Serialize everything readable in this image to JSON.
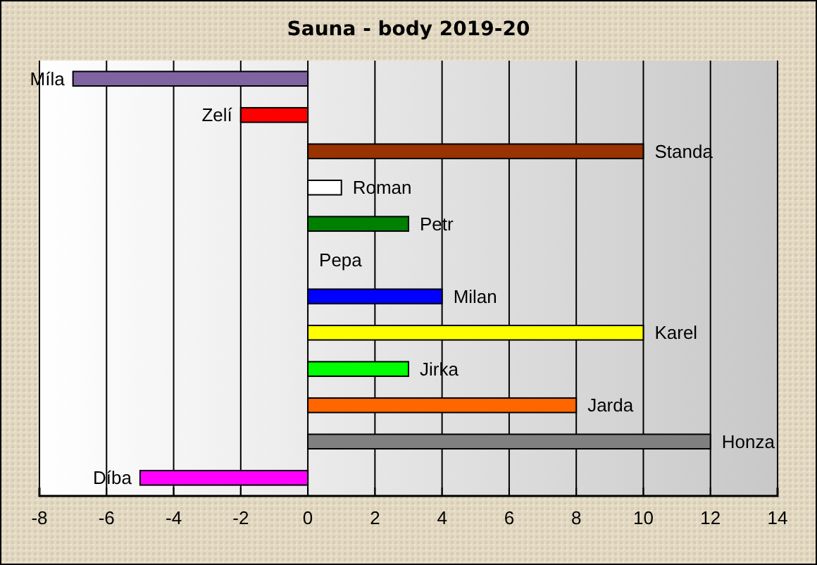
{
  "chart_data": {
    "type": "bar",
    "orientation": "horizontal",
    "title": "Sauna - body 2019-20",
    "categories": [
      "Míla",
      "Zelí",
      "Standa",
      "Roman",
      "Petr",
      "Pepa",
      "Milan",
      "Karel",
      "Jirka",
      "Jarda",
      "Honza",
      "Díba"
    ],
    "values": [
      -7,
      -2,
      10,
      1,
      3,
      0,
      4,
      10,
      3,
      8,
      12,
      -5
    ],
    "colors": [
      "#8064a2",
      "#ff0000",
      "#993300",
      "#ffffff",
      "#008000",
      "#ffff00",
      "#0000ff",
      "#ffff00",
      "#00ff00",
      "#ff6600",
      "#808080",
      "#ff00ff"
    ],
    "xlim": [
      -8,
      14
    ],
    "xticks": [
      -8,
      -6,
      -4,
      -2,
      0,
      2,
      4,
      6,
      8,
      10,
      12,
      14
    ],
    "grid": "x"
  }
}
